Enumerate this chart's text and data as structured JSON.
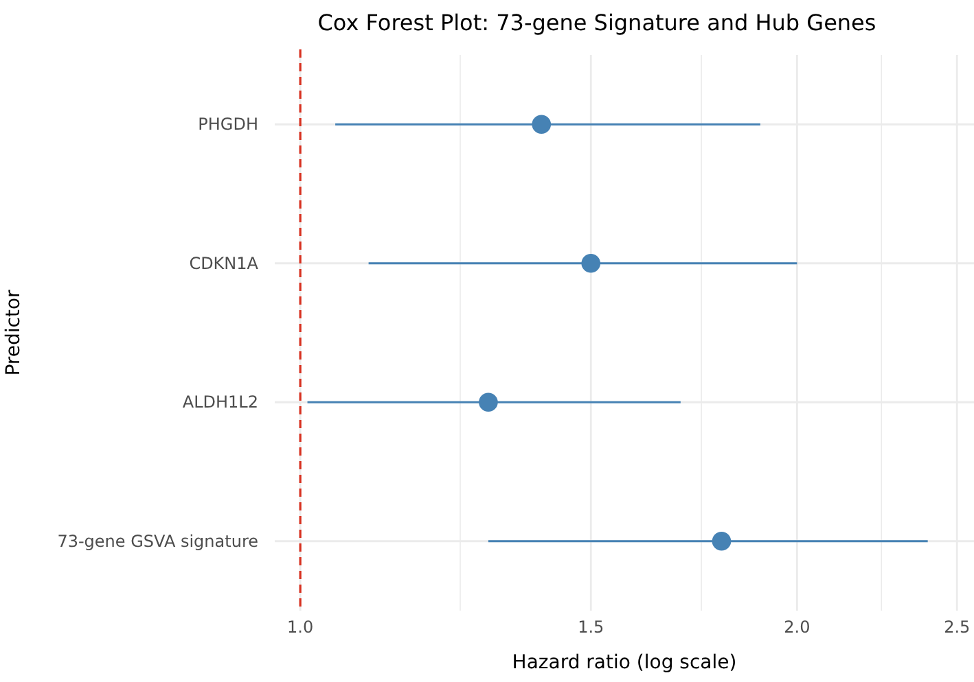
{
  "chart_data": {
    "type": "scatter",
    "title": "Cox Forest Plot: 73-gene Signature and Hub Genes",
    "xlabel": "Hazard ratio (log scale)",
    "ylabel": "Predictor",
    "orientation": "horizontal",
    "categories": [
      "PHGDH",
      "CDKN1A",
      "ALDH1L2",
      "73-gene GSVA signature"
    ],
    "series": [
      {
        "color": "#4682b4",
        "values": [
          1.4,
          1.5,
          1.3,
          1.8
        ],
        "errors": [
          [
            1.05,
            1.9
          ],
          [
            1.1,
            2.0
          ],
          [
            1.01,
            1.7
          ],
          [
            1.3,
            2.4
          ]
        ]
      }
    ],
    "log": "x",
    "xlim": [
      0.965,
      2.56
    ],
    "xticks": [
      {
        "value": 1,
        "label": "1.0"
      },
      {
        "value": 1.25,
        "label": null
      },
      {
        "value": 1.5,
        "label": "1.5"
      },
      {
        "value": 1.75,
        "label": null
      },
      {
        "value": 2,
        "label": "2.0"
      },
      {
        "value": 2.25,
        "label": null
      },
      {
        "value": 2.5,
        "label": "2.5"
      }
    ],
    "grid": true,
    "marker": "circle",
    "ref_lines": [
      {
        "axis": "x",
        "value": 1,
        "color": "#d7301f",
        "line_style": "dashed"
      }
    ]
  }
}
